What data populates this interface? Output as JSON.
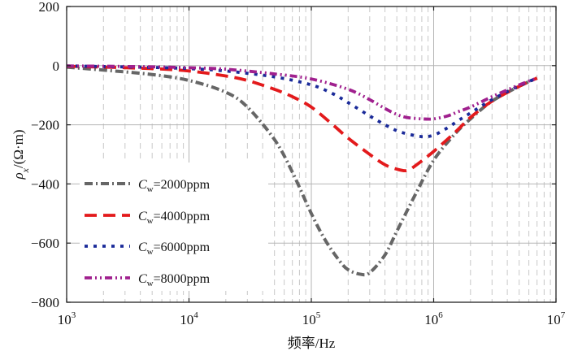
{
  "chart_data": {
    "type": "line",
    "xscale": "log",
    "xlim": [
      1000,
      10000000
    ],
    "ylim": [
      -800,
      200
    ],
    "xlabel": "频率/Hz",
    "ylabel": "ρx/(Ω·m)",
    "yticks": [
      200,
      0,
      -200,
      -400,
      -600,
      -800
    ],
    "ytick_labels": [
      "200",
      "0",
      "−200",
      "−400",
      "−600",
      "−800"
    ],
    "xticks": [
      {
        "base": "10",
        "exp": "3"
      },
      {
        "base": "10",
        "exp": "4"
      },
      {
        "base": "10",
        "exp": "5"
      },
      {
        "base": "10",
        "exp": "6"
      },
      {
        "base": "10",
        "exp": "7"
      }
    ],
    "grid": true,
    "legend_position": "bottom-left",
    "series": [
      {
        "name": "Cw=2000ppm",
        "label_var": "C",
        "label_sub": "w",
        "label_rest": "=2000ppm",
        "color": "#666666",
        "dash": "dashdot",
        "x": [
          1000,
          2000,
          5000,
          10000,
          20000,
          30000,
          50000,
          70000,
          100000,
          130000,
          170000,
          200000,
          250000,
          300000,
          400000,
          500000,
          700000,
          1000000,
          1500000,
          2000000,
          3000000,
          5000000,
          7000000
        ],
        "y": [
          -5,
          -15,
          -30,
          -50,
          -90,
          -140,
          -250,
          -360,
          -500,
          -590,
          -660,
          -690,
          -705,
          -700,
          -640,
          -560,
          -440,
          -320,
          -230,
          -180,
          -120,
          -70,
          -42
        ]
      },
      {
        "name": "Cw=4000ppm",
        "label_var": "C",
        "label_sub": "w",
        "label_rest": "=4000ppm",
        "color": "#e31a1c",
        "dash": "dash",
        "x": [
          1000,
          2000,
          5000,
          10000,
          20000,
          30000,
          50000,
          70000,
          100000,
          150000,
          200000,
          300000,
          400000,
          500000,
          600000,
          700000,
          1000000,
          1500000,
          2000000,
          3000000,
          5000000,
          7000000
        ],
        "y": [
          -2,
          -5,
          -10,
          -18,
          -35,
          -50,
          -80,
          -105,
          -140,
          -200,
          -245,
          -300,
          -335,
          -350,
          -355,
          -340,
          -290,
          -225,
          -175,
          -120,
          -70,
          -42
        ]
      },
      {
        "name": "Cw=6000ppm",
        "label_var": "C",
        "label_sub": "w",
        "label_rest": "=6000ppm",
        "color": "#1a2a99",
        "dash": "dot",
        "x": [
          1000,
          2000,
          5000,
          10000,
          20000,
          50000,
          100000,
          150000,
          200000,
          300000,
          400000,
          500000,
          600000,
          800000,
          1000000,
          1300000,
          1600000,
          2000000,
          3000000,
          5000000,
          7000000
        ],
        "y": [
          -1,
          -3,
          -6,
          -10,
          -18,
          -38,
          -65,
          -95,
          -125,
          -170,
          -200,
          -220,
          -230,
          -240,
          -235,
          -210,
          -185,
          -160,
          -115,
          -68,
          -42
        ]
      },
      {
        "name": "Cw=8000ppm",
        "label_var": "C",
        "label_sub": "w",
        "label_rest": "=8000ppm",
        "color": "#a0208e",
        "dash": "dashdotdot",
        "x": [
          1000,
          2000,
          5000,
          10000,
          20000,
          50000,
          100000,
          200000,
          300000,
          400000,
          500000,
          600000,
          800000,
          1000000,
          1300000,
          1600000,
          2000000,
          3000000,
          5000000,
          7000000
        ],
        "y": [
          -1,
          -2,
          -4,
          -7,
          -12,
          -28,
          -45,
          -80,
          -115,
          -145,
          -165,
          -175,
          -180,
          -180,
          -170,
          -155,
          -140,
          -105,
          -65,
          -42
        ]
      }
    ]
  }
}
